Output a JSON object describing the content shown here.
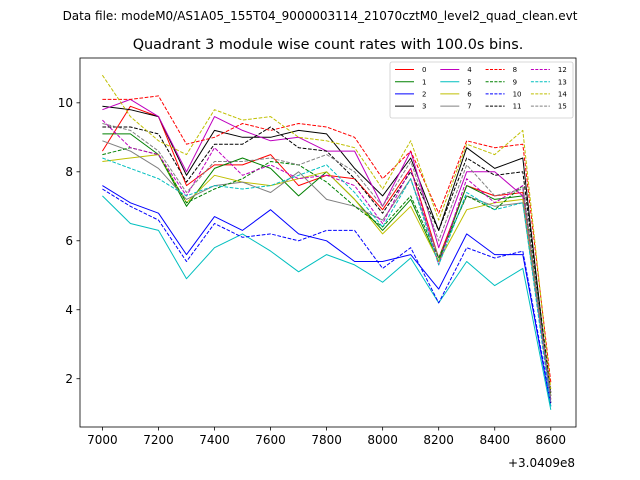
{
  "header": "Data file: modeM0/AS1A05_155T04_9000003114_21070cztM0_level2_quad_clean.evt",
  "chart_data": {
    "type": "line",
    "title": "Quadrant 3 module wise count rates with 100.0s bins.",
    "xlabel": "",
    "ylabel": "",
    "x_offset_label": "+3.0409e8",
    "x": [
      7000,
      7100,
      7200,
      7300,
      7400,
      7500,
      7600,
      7700,
      7800,
      7900,
      8000,
      8100,
      8200,
      8300,
      8400,
      8500,
      8600
    ],
    "xlim": [
      6920,
      8690
    ],
    "ylim": [
      0.6,
      11.3
    ],
    "xticks": [
      7000,
      7200,
      7400,
      7600,
      7800,
      8000,
      8200,
      8400,
      8600
    ],
    "xtick_labels": [
      "7000",
      "7200",
      "7400",
      "7600",
      "7800",
      "8000",
      "8200",
      "8400",
      "8600"
    ],
    "yticks": [
      2,
      4,
      6,
      8,
      10
    ],
    "ytick_labels": [
      "2",
      "4",
      "6",
      "8",
      "10"
    ],
    "grid": false,
    "legend_position": "top-right",
    "legend_columns": 4,
    "series": [
      {
        "name": "0",
        "color": "#ff0000",
        "dash": "solid",
        "values": [
          8.6,
          9.9,
          9.6,
          7.6,
          8.2,
          8.2,
          8.5,
          7.6,
          7.9,
          7.8,
          6.9,
          8.1,
          5.5,
          7.6,
          7.3,
          7.4,
          1.4
        ]
      },
      {
        "name": "1",
        "color": "#008000",
        "dash": "solid",
        "values": [
          9.1,
          9.1,
          8.5,
          7.0,
          8.1,
          8.4,
          8.1,
          7.3,
          8.0,
          7.2,
          6.3,
          7.2,
          5.4,
          7.6,
          7.2,
          7.3,
          1.5
        ]
      },
      {
        "name": "2",
        "color": "#0000ff",
        "dash": "solid",
        "values": [
          7.6,
          7.1,
          6.8,
          5.6,
          6.7,
          6.3,
          6.9,
          6.2,
          6.0,
          5.4,
          5.4,
          5.6,
          4.6,
          6.2,
          5.6,
          5.6,
          1.2
        ]
      },
      {
        "name": "3",
        "color": "#000000",
        "dash": "solid",
        "values": [
          9.9,
          9.8,
          9.6,
          7.9,
          9.2,
          9.0,
          9.0,
          9.2,
          9.1,
          8.1,
          7.3,
          8.4,
          6.3,
          8.7,
          8.1,
          8.4,
          1.3
        ]
      },
      {
        "name": "4",
        "color": "#bf00bf",
        "dash": "solid",
        "values": [
          9.8,
          10.1,
          9.6,
          8.0,
          9.6,
          9.2,
          8.9,
          9.0,
          8.6,
          8.6,
          7.0,
          8.6,
          5.8,
          8.0,
          8.0,
          7.3,
          1.6
        ]
      },
      {
        "name": "5",
        "color": "#00bfbf",
        "dash": "solid",
        "values": [
          7.3,
          6.5,
          6.3,
          4.9,
          5.8,
          6.2,
          5.7,
          5.1,
          5.6,
          5.3,
          4.8,
          5.5,
          4.2,
          5.4,
          4.7,
          5.2,
          1.1
        ]
      },
      {
        "name": "6",
        "color": "#bfbf00",
        "dash": "solid",
        "values": [
          8.3,
          8.4,
          8.5,
          7.1,
          7.9,
          7.7,
          7.6,
          7.8,
          8.0,
          7.2,
          6.2,
          7.0,
          5.4,
          6.9,
          7.1,
          7.2,
          1.5
        ]
      },
      {
        "name": "7",
        "color": "#808080",
        "dash": "solid",
        "values": [
          8.9,
          8.6,
          8.1,
          7.2,
          7.6,
          7.7,
          7.4,
          8.0,
          7.2,
          7.0,
          6.6,
          7.8,
          5.5,
          7.3,
          7.0,
          7.1,
          1.4
        ]
      },
      {
        "name": "8",
        "color": "#ff0000",
        "dash": "dashed",
        "values": [
          10.1,
          10.1,
          10.2,
          8.8,
          9.0,
          9.4,
          9.2,
          9.4,
          9.3,
          9.0,
          7.8,
          8.6,
          6.8,
          8.9,
          8.7,
          8.8,
          1.9
        ]
      },
      {
        "name": "9",
        "color": "#008000",
        "dash": "dashed",
        "values": [
          8.5,
          8.7,
          8.5,
          7.1,
          7.5,
          7.8,
          8.3,
          8.2,
          7.7,
          7.0,
          6.4,
          7.3,
          5.5,
          7.3,
          6.9,
          7.6,
          1.6
        ]
      },
      {
        "name": "10",
        "color": "#0000ff",
        "dash": "dashed",
        "values": [
          7.5,
          7.0,
          6.6,
          5.4,
          6.5,
          6.1,
          6.2,
          6.0,
          6.3,
          6.3,
          5.2,
          5.8,
          4.2,
          5.8,
          5.5,
          5.7,
          1.3
        ]
      },
      {
        "name": "11",
        "color": "#000000",
        "dash": "dashed",
        "values": [
          9.3,
          9.3,
          9.1,
          7.7,
          8.8,
          8.8,
          9.3,
          8.7,
          8.6,
          7.8,
          6.8,
          8.0,
          6.3,
          8.4,
          7.9,
          8.0,
          1.6
        ]
      },
      {
        "name": "12",
        "color": "#bf00bf",
        "dash": "dashed",
        "values": [
          9.5,
          8.7,
          8.5,
          7.3,
          8.7,
          7.9,
          8.2,
          7.8,
          7.9,
          7.6,
          6.5,
          8.1,
          5.3,
          7.8,
          7.1,
          7.6,
          1.3
        ]
      },
      {
        "name": "13",
        "color": "#00bfbf",
        "dash": "dashed",
        "values": [
          8.4,
          8.1,
          7.8,
          7.3,
          7.6,
          7.5,
          7.6,
          7.9,
          8.2,
          7.4,
          6.4,
          7.8,
          5.3,
          7.4,
          6.9,
          7.1,
          1.2
        ]
      },
      {
        "name": "14",
        "color": "#bfbf00",
        "dash": "dashed",
        "values": [
          10.8,
          9.6,
          8.9,
          8.5,
          9.8,
          9.5,
          9.6,
          9.0,
          8.9,
          8.7,
          7.5,
          8.9,
          6.6,
          8.8,
          8.5,
          9.2,
          1.7
        ]
      },
      {
        "name": "15",
        "color": "#808080",
        "dash": "dashed",
        "values": [
          9.4,
          9.2,
          8.6,
          7.4,
          8.3,
          8.3,
          8.4,
          8.2,
          8.5,
          8.0,
          7.0,
          8.3,
          6.0,
          8.2,
          7.3,
          7.5,
          1.5
        ]
      }
    ]
  }
}
